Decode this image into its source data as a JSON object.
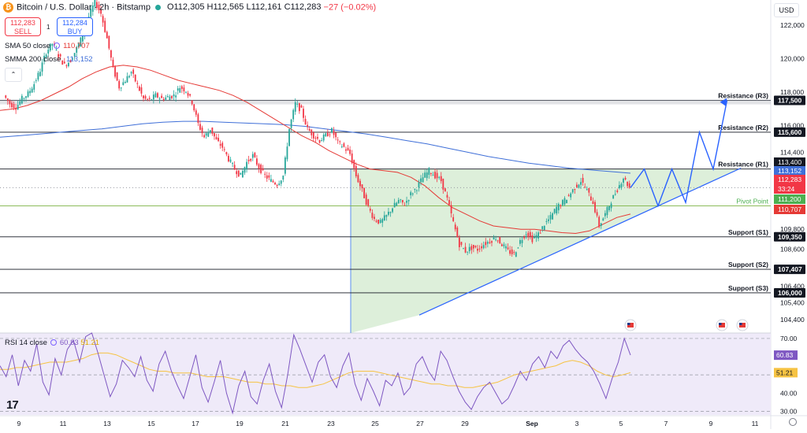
{
  "header": {
    "symbol_title": "Bitcoin / U.S. Dollar · 2h · Bitstamp",
    "ohlc": "O112,305 H112,565 L112,161 C112,283",
    "change": "−27 (−0.02%)"
  },
  "trade": {
    "sell_price": "112,283",
    "sell_label": "SELL",
    "buy_price": "112,284",
    "buy_label": "BUY",
    "spread": "1"
  },
  "indicators": {
    "sma50_label": "SMA 50 close",
    "sma50_value": "110,707",
    "smma200_label": "SMMA 200 close",
    "smma200_value": "113,152",
    "rsi_label": "RSI 14 close",
    "rsi_value": "60.83",
    "rsi_ma_value": "51.21"
  },
  "currency": "USD",
  "colors": {
    "bull": "#26a69a",
    "bear": "#f23645",
    "sma50": "#e53935",
    "smma200": "#3f6fd8",
    "triangle_fill": "#d7ecd3",
    "trend": "#2962ff",
    "rsi_line": "#7e57c2",
    "rsi_ma": "#f6c343",
    "rsi_bg": "#efeaf9"
  },
  "chart_data": {
    "type": "candlestick",
    "timeframe": "2h",
    "ylim": [
      103600,
      123500
    ],
    "x_tick_labels": [
      "9",
      "11",
      "13",
      "15",
      "17",
      "19",
      "21",
      "23",
      "25",
      "27",
      "29",
      "Sep",
      "3",
      "5",
      "7",
      "9",
      "11"
    ],
    "y_tick_labels": [
      "122,000",
      "120,000",
      "118,000",
      "116,000",
      "114,400",
      "109,800",
      "108,600",
      "106,400",
      "105,400",
      "104,400"
    ],
    "price_tags": [
      {
        "label": "113,400",
        "value": 113400,
        "kind": "dark"
      },
      {
        "label": "113,152",
        "value": 113152,
        "kind": "smma"
      },
      {
        "label": "112,283",
        "value": 112283,
        "kind": "price"
      },
      {
        "label": "33:24",
        "value": 111950,
        "kind": "timer"
      },
      {
        "label": "111,200",
        "value": 111200,
        "kind": "pivot"
      },
      {
        "label": "110,707",
        "value": 110707,
        "kind": "sma"
      }
    ],
    "levels": [
      {
        "name": "Resistance (R3)",
        "value": 117500
      },
      {
        "name": "Resistance (R2)",
        "value": 115600
      },
      {
        "name": "Resistance (R1)",
        "value": 113400
      },
      {
        "name": "Pivot Point",
        "value": 111200
      },
      {
        "name": "Support (S1)",
        "value": 109350
      },
      {
        "name": "Support (S2)",
        "value": 107407
      },
      {
        "name": "Support (S3)",
        "value": 106000
      }
    ],
    "level_labels": [
      "117,500",
      "115,600",
      "109,350",
      "107,407",
      "106,000"
    ],
    "price_path": [
      117800,
      117300,
      117100,
      117600,
      117900,
      118500,
      119300,
      120400,
      120900,
      120200,
      119600,
      119900,
      120600,
      121400,
      122500,
      123400,
      122700,
      121200,
      119400,
      118300,
      118700,
      119200,
      118400,
      117600,
      117500,
      117800,
      117600,
      117700,
      117800,
      118300,
      118100,
      117400,
      116100,
      115300,
      115800,
      115100,
      114700,
      114000,
      113400,
      113000,
      113800,
      114200,
      113500,
      113000,
      112700,
      112500,
      113000,
      115800,
      117300,
      116900,
      115800,
      115400,
      115100,
      115400,
      115700,
      115000,
      114700,
      114300,
      113000,
      112100,
      111100,
      110400,
      110200,
      110600,
      111100,
      111500,
      111300,
      111900,
      112300,
      112900,
      113300,
      113000,
      112700,
      111600,
      110200,
      108900,
      108500,
      108700,
      108600,
      108900,
      109100,
      109300,
      108900,
      108500,
      108300,
      109100,
      109600,
      109200,
      109500,
      110100,
      110500,
      111100,
      111400,
      111800,
      112300,
      112700,
      112100,
      111400,
      110000,
      110700,
      111500,
      112200,
      112900,
      112283
    ],
    "sma50": [
      116900,
      117000,
      117200,
      117500,
      117900,
      118300,
      118800,
      119200,
      119500,
      119600,
      119500,
      119300,
      119000,
      118700,
      118500,
      118300,
      118100,
      117800,
      117400,
      116900,
      116400,
      115900,
      115400,
      115000,
      114500,
      114100,
      113700,
      113400,
      113300,
      113200,
      112900,
      112400,
      111700,
      111100,
      110700,
      110300,
      110000,
      109900,
      109800,
      109800,
      109700,
      109600,
      109550,
      109700,
      110100,
      110500,
      110707
    ],
    "smma200": [
      115300,
      115400,
      115500,
      115600,
      115700,
      115800,
      115950,
      116100,
      116200,
      116250,
      116250,
      116200,
      116150,
      116100,
      116050,
      115950,
      115800,
      115650,
      115500,
      115300,
      115100,
      114900,
      114650,
      114400,
      114150,
      113950,
      113750,
      113600,
      113450,
      113350,
      113250,
      113152
    ],
    "forecast_path": [
      112283,
      113400,
      111200,
      113400,
      111400,
      115600,
      113400,
      117500
    ],
    "rsi": {
      "ylim": [
        28,
        73
      ],
      "tick_labels": [
        "70.00",
        "50.00",
        "40.00",
        "30.00"
      ],
      "levels": [
        70,
        50,
        30
      ],
      "value": 60.83,
      "ma_value": 51.21,
      "values": [
        55,
        49,
        61,
        44,
        58,
        52,
        67,
        46,
        39,
        59,
        50,
        64,
        69,
        57,
        71,
        73,
        62,
        50,
        38,
        45,
        58,
        54,
        49,
        60,
        47,
        41,
        56,
        63,
        52,
        44,
        37,
        49,
        61,
        43,
        35,
        46,
        58,
        40,
        29,
        44,
        52,
        38,
        34,
        47,
        56,
        41,
        32,
        50,
        72,
        64,
        55,
        46,
        57,
        61,
        49,
        43,
        55,
        62,
        45,
        36,
        48,
        41,
        33,
        47,
        44,
        51,
        39,
        43,
        56,
        60,
        52,
        47,
        63,
        58,
        49,
        41,
        35,
        31,
        38,
        43,
        46,
        40,
        34,
        37,
        44,
        52,
        47,
        56,
        60,
        54,
        63,
        59,
        66,
        69,
        64,
        60,
        57,
        52,
        45,
        37,
        48,
        57,
        70,
        60.83
      ],
      "ma": [
        53,
        53,
        54,
        54,
        55,
        56,
        57,
        57,
        57,
        58,
        59,
        61,
        62,
        62,
        61,
        59,
        57,
        55,
        53,
        52,
        52,
        51,
        51,
        51,
        50,
        49,
        49,
        49,
        48,
        47,
        46,
        46,
        45,
        45,
        44,
        44,
        43,
        43,
        44,
        45,
        47,
        49,
        51,
        52,
        52,
        52,
        51,
        50,
        49,
        48,
        47,
        46,
        45,
        45,
        44,
        44,
        43,
        43,
        44,
        45,
        46,
        48,
        50,
        51,
        52,
        53,
        54,
        55,
        57,
        58,
        57,
        55,
        52,
        50,
        49,
        50,
        51.21
      ]
    }
  }
}
